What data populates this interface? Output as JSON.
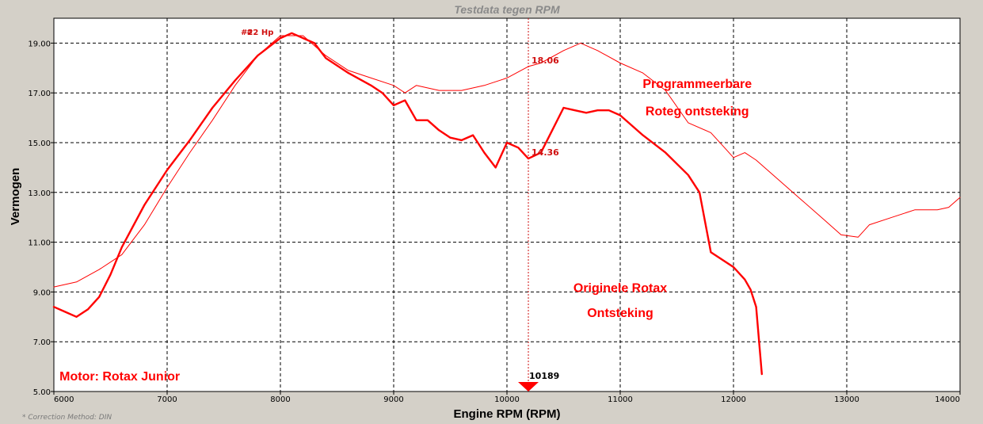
{
  "chart_data": {
    "type": "line",
    "title": "Testdata tegen RPM",
    "xlabel": "Engine RPM (RPM)",
    "ylabel": "Vermogen",
    "xlim": [
      6000,
      14000
    ],
    "ylim": [
      5.0,
      20.0
    ],
    "x_ticks": [
      6000,
      7000,
      8000,
      9000,
      10000,
      11000,
      12000,
      13000,
      14000
    ],
    "y_ticks": [
      "5.00",
      "7.00",
      "9.00",
      "11.00",
      "13.00",
      "15.00",
      "17.00",
      "19.00"
    ],
    "grid": true,
    "series": [
      {
        "name": "Programmeerbare Roteg ontsteking",
        "color": "#ff0000",
        "style": "thin",
        "points": [
          [
            6000,
            9.2
          ],
          [
            6200,
            9.4
          ],
          [
            6400,
            9.9
          ],
          [
            6600,
            10.5
          ],
          [
            6800,
            11.7
          ],
          [
            7000,
            13.2
          ],
          [
            7200,
            14.6
          ],
          [
            7400,
            15.9
          ],
          [
            7600,
            17.3
          ],
          [
            7800,
            18.5
          ],
          [
            8000,
            19.3
          ],
          [
            8200,
            19.3
          ],
          [
            8400,
            18.5
          ],
          [
            8600,
            17.9
          ],
          [
            8800,
            17.6
          ],
          [
            9000,
            17.3
          ],
          [
            9100,
            17.0
          ],
          [
            9200,
            17.3
          ],
          [
            9400,
            17.1
          ],
          [
            9600,
            17.1
          ],
          [
            9800,
            17.3
          ],
          [
            10000,
            17.6
          ],
          [
            10189,
            18.06
          ],
          [
            10300,
            18.2
          ],
          [
            10500,
            18.7
          ],
          [
            10650,
            19.0
          ],
          [
            10800,
            18.7
          ],
          [
            11000,
            18.2
          ],
          [
            11200,
            17.8
          ],
          [
            11400,
            17.1
          ],
          [
            11600,
            15.8
          ],
          [
            11800,
            15.4
          ],
          [
            11900,
            14.9
          ],
          [
            12000,
            14.4
          ],
          [
            12100,
            14.6
          ],
          [
            12200,
            14.3
          ],
          [
            12400,
            13.5
          ],
          [
            12600,
            12.7
          ],
          [
            12800,
            11.9
          ],
          [
            12950,
            11.3
          ],
          [
            13100,
            11.2
          ],
          [
            13200,
            11.7
          ],
          [
            13400,
            12.0
          ],
          [
            13600,
            12.3
          ],
          [
            13800,
            12.3
          ],
          [
            13900,
            12.4
          ],
          [
            14000,
            12.8
          ]
        ]
      },
      {
        "name": "Originele Rotax Ontsteking",
        "color": "#ff0000",
        "style": "thick",
        "points": [
          [
            6000,
            8.4
          ],
          [
            6100,
            8.2
          ],
          [
            6200,
            8.0
          ],
          [
            6300,
            8.3
          ],
          [
            6400,
            8.8
          ],
          [
            6500,
            9.7
          ],
          [
            6600,
            10.8
          ],
          [
            6800,
            12.5
          ],
          [
            7000,
            13.9
          ],
          [
            7200,
            15.1
          ],
          [
            7400,
            16.4
          ],
          [
            7600,
            17.5
          ],
          [
            7800,
            18.5
          ],
          [
            8000,
            19.2
          ],
          [
            8100,
            19.4
          ],
          [
            8300,
            19.0
          ],
          [
            8400,
            18.4
          ],
          [
            8600,
            17.8
          ],
          [
            8800,
            17.3
          ],
          [
            8900,
            17.0
          ],
          [
            9000,
            16.5
          ],
          [
            9100,
            16.7
          ],
          [
            9200,
            15.9
          ],
          [
            9300,
            15.9
          ],
          [
            9400,
            15.5
          ],
          [
            9500,
            15.2
          ],
          [
            9600,
            15.1
          ],
          [
            9700,
            15.3
          ],
          [
            9800,
            14.6
          ],
          [
            9900,
            14.0
          ],
          [
            10000,
            15.0
          ],
          [
            10100,
            14.8
          ],
          [
            10189,
            14.36
          ],
          [
            10300,
            14.6
          ],
          [
            10400,
            15.5
          ],
          [
            10500,
            16.4
          ],
          [
            10600,
            16.3
          ],
          [
            10700,
            16.2
          ],
          [
            10800,
            16.3
          ],
          [
            10900,
            16.3
          ],
          [
            11000,
            16.1
          ],
          [
            11200,
            15.3
          ],
          [
            11400,
            14.6
          ],
          [
            11600,
            13.7
          ],
          [
            11700,
            13.0
          ],
          [
            11800,
            10.6
          ],
          [
            12000,
            10.0
          ],
          [
            12100,
            9.5
          ],
          [
            12150,
            9.1
          ],
          [
            12200,
            8.4
          ],
          [
            12250,
            5.7
          ]
        ]
      }
    ],
    "cursor": {
      "x": 10189,
      "x_label": "10189",
      "values": [
        "18.06",
        "14.36"
      ]
    },
    "marker_labels": [
      "#2",
      "#2 Hp"
    ],
    "annotations": [
      {
        "text": "Programmeerbare",
        "x": 11680,
        "y": 17.2
      },
      {
        "text": "Roteg ontsteking",
        "x": 11680,
        "y": 16.1
      },
      {
        "text": "Originele Rotax",
        "x": 11000,
        "y": 9.0
      },
      {
        "text": "Ontsteking",
        "x": 11000,
        "y": 8.0
      },
      {
        "text": "Motor: Rotax Junior",
        "x": 6050,
        "y": 5.45
      }
    ],
    "footnote": "* Correction Method: DIN"
  }
}
